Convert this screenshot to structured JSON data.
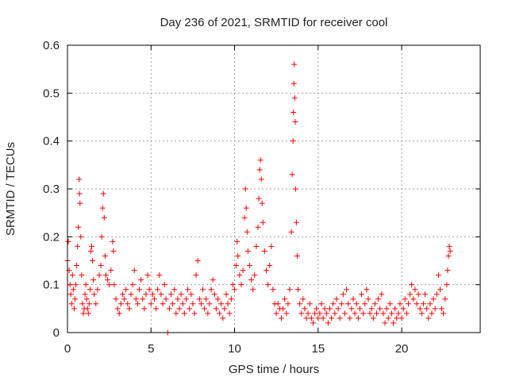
{
  "chart_data": {
    "type": "scatter",
    "title": "Day 236 of 2021, SRMTID for receiver cool",
    "xlabel": "GPS time / hours",
    "ylabel": "SRMTID / TECUs",
    "xlim": [
      0,
      24.7
    ],
    "ylim": [
      0,
      0.6
    ],
    "xticks": [
      0,
      5,
      10,
      15,
      20
    ],
    "xtick_labels": [
      "0",
      "5",
      "10",
      "15",
      "20"
    ],
    "yticks": [
      0,
      0.1,
      0.2,
      0.3,
      0.4,
      0.5,
      0.6
    ],
    "ytick_labels": [
      "0",
      "0.1",
      "0.2",
      "0.3",
      "0.4",
      "0.5",
      "0.6"
    ],
    "grid": true,
    "marker": "+",
    "color": "#ff0000",
    "series": [
      {
        "name": "SRMTID",
        "points": [
          [
            0.0,
            0.15
          ],
          [
            0.05,
            0.19
          ],
          [
            0.1,
            0.13
          ],
          [
            0.15,
            0.1
          ],
          [
            0.2,
            0.08
          ],
          [
            0.25,
            0.06
          ],
          [
            0.3,
            0.12
          ],
          [
            0.35,
            0.09
          ],
          [
            0.4,
            0.05
          ],
          [
            0.45,
            0.07
          ],
          [
            0.5,
            0.1
          ],
          [
            0.55,
            0.14
          ],
          [
            0.6,
            0.18
          ],
          [
            0.65,
            0.22
          ],
          [
            0.7,
            0.32
          ],
          [
            0.72,
            0.29
          ],
          [
            0.75,
            0.27
          ],
          [
            0.8,
            0.2
          ],
          [
            0.85,
            0.12
          ],
          [
            0.9,
            0.06
          ],
          [
            0.95,
            0.04
          ],
          [
            1.0,
            0.05
          ],
          [
            1.05,
            0.08
          ],
          [
            1.1,
            0.1
          ],
          [
            1.15,
            0.07
          ],
          [
            1.2,
            0.05
          ],
          [
            1.25,
            0.04
          ],
          [
            1.3,
            0.06
          ],
          [
            1.35,
            0.09
          ],
          [
            1.4,
            0.17
          ],
          [
            1.45,
            0.18
          ],
          [
            1.5,
            0.15
          ],
          [
            1.55,
            0.11
          ],
          [
            1.6,
            0.08
          ],
          [
            1.7,
            0.06
          ],
          [
            1.8,
            0.09
          ],
          [
            1.9,
            0.12
          ],
          [
            2.0,
            0.14
          ],
          [
            2.05,
            0.2
          ],
          [
            2.1,
            0.26
          ],
          [
            2.15,
            0.29
          ],
          [
            2.2,
            0.24
          ],
          [
            2.25,
            0.16
          ],
          [
            2.3,
            0.12
          ],
          [
            2.4,
            0.11
          ],
          [
            2.5,
            0.1
          ],
          [
            2.6,
            0.13
          ],
          [
            2.7,
            0.19
          ],
          [
            2.75,
            0.17
          ],
          [
            2.8,
            0.1
          ],
          [
            2.9,
            0.07
          ],
          [
            3.0,
            0.05
          ],
          [
            3.1,
            0.04
          ],
          [
            3.2,
            0.06
          ],
          [
            3.3,
            0.08
          ],
          [
            3.4,
            0.07
          ],
          [
            3.5,
            0.09
          ],
          [
            3.6,
            0.06
          ],
          [
            3.7,
            0.05
          ],
          [
            3.8,
            0.08
          ],
          [
            3.9,
            0.1
          ],
          [
            4.0,
            0.13
          ],
          [
            4.1,
            0.07
          ],
          [
            4.2,
            0.06
          ],
          [
            4.3,
            0.09
          ],
          [
            4.4,
            0.11
          ],
          [
            4.5,
            0.07
          ],
          [
            4.6,
            0.05
          ],
          [
            4.7,
            0.08
          ],
          [
            4.8,
            0.12
          ],
          [
            4.9,
            0.09
          ],
          [
            5.0,
            0.06
          ],
          [
            5.1,
            0.08
          ],
          [
            5.2,
            0.07
          ],
          [
            5.3,
            0.05
          ],
          [
            5.4,
            0.09
          ],
          [
            5.5,
            0.12
          ],
          [
            5.6,
            0.08
          ],
          [
            5.7,
            0.06
          ],
          [
            5.8,
            0.1
          ],
          [
            5.9,
            0.07
          ],
          [
            6.0,
            0.0
          ],
          [
            6.1,
            0.05
          ],
          [
            6.2,
            0.08
          ],
          [
            6.3,
            0.06
          ],
          [
            6.4,
            0.09
          ],
          [
            6.5,
            0.04
          ],
          [
            6.6,
            0.07
          ],
          [
            6.7,
            0.05
          ],
          [
            6.8,
            0.08
          ],
          [
            6.9,
            0.06
          ],
          [
            7.0,
            0.04
          ],
          [
            7.1,
            0.07
          ],
          [
            7.2,
            0.09
          ],
          [
            7.3,
            0.05
          ],
          [
            7.4,
            0.08
          ],
          [
            7.5,
            0.06
          ],
          [
            7.6,
            0.04
          ],
          [
            7.7,
            0.12
          ],
          [
            7.8,
            0.15
          ],
          [
            7.9,
            0.07
          ],
          [
            8.0,
            0.06
          ],
          [
            8.1,
            0.09
          ],
          [
            8.2,
            0.05
          ],
          [
            8.3,
            0.07
          ],
          [
            8.4,
            0.04
          ],
          [
            8.5,
            0.06
          ],
          [
            8.6,
            0.09
          ],
          [
            8.7,
            0.11
          ],
          [
            8.8,
            0.08
          ],
          [
            8.9,
            0.05
          ],
          [
            9.0,
            0.07
          ],
          [
            9.1,
            0.04
          ],
          [
            9.2,
            0.06
          ],
          [
            9.3,
            0.03
          ],
          [
            9.4,
            0.05
          ],
          [
            9.5,
            0.08
          ],
          [
            9.6,
            0.06
          ],
          [
            9.7,
            0.04
          ],
          [
            9.8,
            0.07
          ],
          [
            9.9,
            0.1
          ],
          [
            10.0,
            0.09
          ],
          [
            10.1,
            0.14
          ],
          [
            10.15,
            0.19
          ],
          [
            10.2,
            0.16
          ],
          [
            10.3,
            0.12
          ],
          [
            10.4,
            0.1
          ],
          [
            10.5,
            0.13
          ],
          [
            10.6,
            0.24
          ],
          [
            10.65,
            0.3
          ],
          [
            10.7,
            0.26
          ],
          [
            10.75,
            0.21
          ],
          [
            10.8,
            0.17
          ],
          [
            10.9,
            0.14
          ],
          [
            11.0,
            0.11
          ],
          [
            11.1,
            0.09
          ],
          [
            11.2,
            0.12
          ],
          [
            11.3,
            0.18
          ],
          [
            11.4,
            0.22
          ],
          [
            11.45,
            0.28
          ],
          [
            11.5,
            0.34
          ],
          [
            11.55,
            0.36
          ],
          [
            11.6,
            0.32
          ],
          [
            11.65,
            0.27
          ],
          [
            11.7,
            0.23
          ],
          [
            11.8,
            0.17
          ],
          [
            11.9,
            0.13
          ],
          [
            12.0,
            0.1
          ],
          [
            12.1,
            0.14
          ],
          [
            12.2,
            0.18
          ],
          [
            12.3,
            0.09
          ],
          [
            12.4,
            0.06
          ],
          [
            12.5,
            0.04
          ],
          [
            12.6,
            0.06
          ],
          [
            12.7,
            0.05
          ],
          [
            12.8,
            0.03
          ],
          [
            12.9,
            0.05
          ],
          [
            13.0,
            0.07
          ],
          [
            13.1,
            0.04
          ],
          [
            13.2,
            0.06
          ],
          [
            13.3,
            0.09
          ],
          [
            13.4,
            0.21
          ],
          [
            13.45,
            0.33
          ],
          [
            13.5,
            0.4
          ],
          [
            13.52,
            0.46
          ],
          [
            13.55,
            0.52
          ],
          [
            13.57,
            0.56
          ],
          [
            13.6,
            0.49
          ],
          [
            13.63,
            0.44
          ],
          [
            13.65,
            0.3
          ],
          [
            13.7,
            0.23
          ],
          [
            13.75,
            0.16
          ],
          [
            13.8,
            0.09
          ],
          [
            13.9,
            0.06
          ],
          [
            14.0,
            0.04
          ],
          [
            14.1,
            0.07
          ],
          [
            14.2,
            0.05
          ],
          [
            14.3,
            0.03
          ],
          [
            14.4,
            0.04
          ],
          [
            14.5,
            0.06
          ],
          [
            14.6,
            0.03
          ],
          [
            14.7,
            0.02
          ],
          [
            14.8,
            0.04
          ],
          [
            14.9,
            0.05
          ],
          [
            15.0,
            0.03
          ],
          [
            15.1,
            0.04
          ],
          [
            15.2,
            0.06
          ],
          [
            15.3,
            0.03
          ],
          [
            15.4,
            0.05
          ],
          [
            15.5,
            0.04
          ],
          [
            15.6,
            0.02
          ],
          [
            15.7,
            0.05
          ],
          [
            15.8,
            0.03
          ],
          [
            15.9,
            0.06
          ],
          [
            16.0,
            0.04
          ],
          [
            16.1,
            0.07
          ],
          [
            16.2,
            0.05
          ],
          [
            16.3,
            0.03
          ],
          [
            16.4,
            0.06
          ],
          [
            16.5,
            0.08
          ],
          [
            16.6,
            0.04
          ],
          [
            16.7,
            0.09
          ],
          [
            16.8,
            0.06
          ],
          [
            16.9,
            0.03
          ],
          [
            17.0,
            0.05
          ],
          [
            17.1,
            0.07
          ],
          [
            17.2,
            0.04
          ],
          [
            17.3,
            0.06
          ],
          [
            17.4,
            0.03
          ],
          [
            17.5,
            0.05
          ],
          [
            17.6,
            0.08
          ],
          [
            17.7,
            0.04
          ],
          [
            17.8,
            0.06
          ],
          [
            17.9,
            0.09
          ],
          [
            18.0,
            0.07
          ],
          [
            18.1,
            0.04
          ],
          [
            18.2,
            0.05
          ],
          [
            18.3,
            0.03
          ],
          [
            18.4,
            0.06
          ],
          [
            18.5,
            0.04
          ],
          [
            18.6,
            0.07
          ],
          [
            18.7,
            0.05
          ],
          [
            18.8,
            0.08
          ],
          [
            18.9,
            0.04
          ],
          [
            19.0,
            0.02
          ],
          [
            19.1,
            0.05
          ],
          [
            19.2,
            0.03
          ],
          [
            19.3,
            0.06
          ],
          [
            19.4,
            0.04
          ],
          [
            19.5,
            0.02
          ],
          [
            19.6,
            0.05
          ],
          [
            19.7,
            0.03
          ],
          [
            19.8,
            0.04
          ],
          [
            19.9,
            0.06
          ],
          [
            20.0,
            0.03
          ],
          [
            20.1,
            0.05
          ],
          [
            20.2,
            0.07
          ],
          [
            20.3,
            0.04
          ],
          [
            20.4,
            0.06
          ],
          [
            20.5,
            0.08
          ],
          [
            20.6,
            0.1
          ],
          [
            20.7,
            0.07
          ],
          [
            20.8,
            0.09
          ],
          [
            20.9,
            0.06
          ],
          [
            21.0,
            0.08
          ],
          [
            21.1,
            0.05
          ],
          [
            21.2,
            0.04
          ],
          [
            21.3,
            0.06
          ],
          [
            21.4,
            0.08
          ],
          [
            21.5,
            0.05
          ],
          [
            21.6,
            0.03
          ],
          [
            21.7,
            0.06
          ],
          [
            21.8,
            0.04
          ],
          [
            21.9,
            0.07
          ],
          [
            22.0,
            0.05
          ],
          [
            22.1,
            0.08
          ],
          [
            22.2,
            0.12
          ],
          [
            22.3,
            0.09
          ],
          [
            22.4,
            0.05
          ],
          [
            22.5,
            0.04
          ],
          [
            22.6,
            0.07
          ],
          [
            22.7,
            0.1
          ],
          [
            22.75,
            0.13
          ],
          [
            22.8,
            0.16
          ],
          [
            22.85,
            0.18
          ],
          [
            22.9,
            0.17
          ]
        ]
      }
    ]
  }
}
